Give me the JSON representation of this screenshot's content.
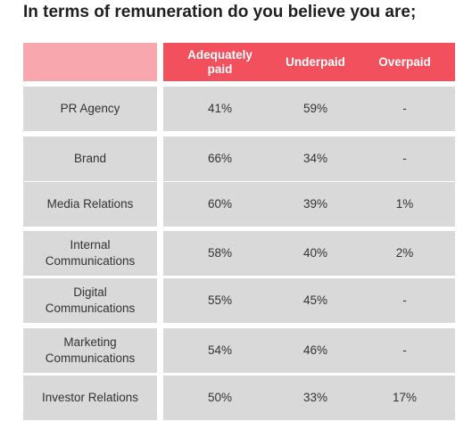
{
  "title": "In terms of remuneration do you believe you are;",
  "chart_data": {
    "type": "table",
    "columns": [
      "",
      "Adequately paid",
      "Underpaid",
      "Overpaid"
    ],
    "rows": [
      {
        "label": "PR Agency",
        "values": [
          "41%",
          "59%",
          "-"
        ]
      },
      {
        "label": "Brand",
        "values": [
          "66%",
          "34%",
          "-"
        ]
      },
      {
        "label": "Media Relations",
        "values": [
          "60%",
          "39%",
          "1%"
        ]
      },
      {
        "label": "Internal Communications",
        "values": [
          "58%",
          "40%",
          "2%"
        ]
      },
      {
        "label": "Digital Communications",
        "values": [
          "55%",
          "45%",
          "-"
        ]
      },
      {
        "label": "Marketing Communications",
        "values": [
          "54%",
          "46%",
          "-"
        ]
      },
      {
        "label": "Investor Relations",
        "values": [
          "50%",
          "33%",
          "17%"
        ]
      }
    ]
  },
  "colors": {
    "header_accent": "#f2505c",
    "header_blank": "#f7a7ad",
    "cell_background": "#d9d9d9",
    "text": "#333333"
  }
}
